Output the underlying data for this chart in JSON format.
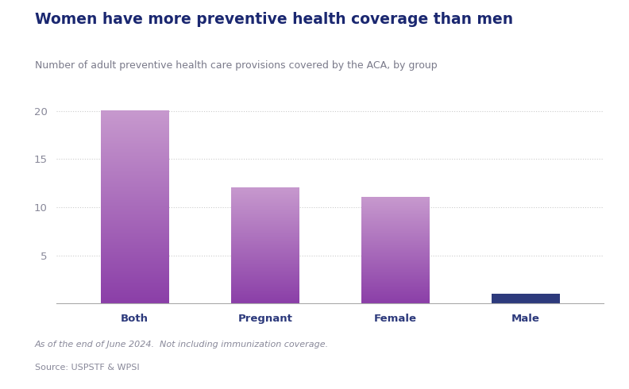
{
  "title": "Women have more preventive health coverage than men",
  "subtitle": "Number of adult preventive health care provisions covered by the ACA, by group",
  "categories": [
    "Both",
    "Pregnant",
    "Female",
    "Male"
  ],
  "values": [
    20,
    12,
    11,
    1
  ],
  "bar_color_purple_top": "#c799ce",
  "bar_color_purple_bottom": "#8b3fa8",
  "bar_color_male": "#2d3a7c",
  "ylim": [
    0,
    21
  ],
  "yticks": [
    5,
    10,
    15,
    20
  ],
  "footnote1": "As of the end of June 2024.  Not including immunization coverage.",
  "footnote2": "Source: USPSTF & WPSI",
  "title_color": "#1a2770",
  "subtitle_color": "#7a7a8a",
  "footnote_color": "#888899",
  "tick_label_color": "#2d3a7c",
  "axis_label_color": "#888899",
  "background_color": "#ffffff",
  "grid_color": "#cccccc",
  "bar_width": 0.52
}
